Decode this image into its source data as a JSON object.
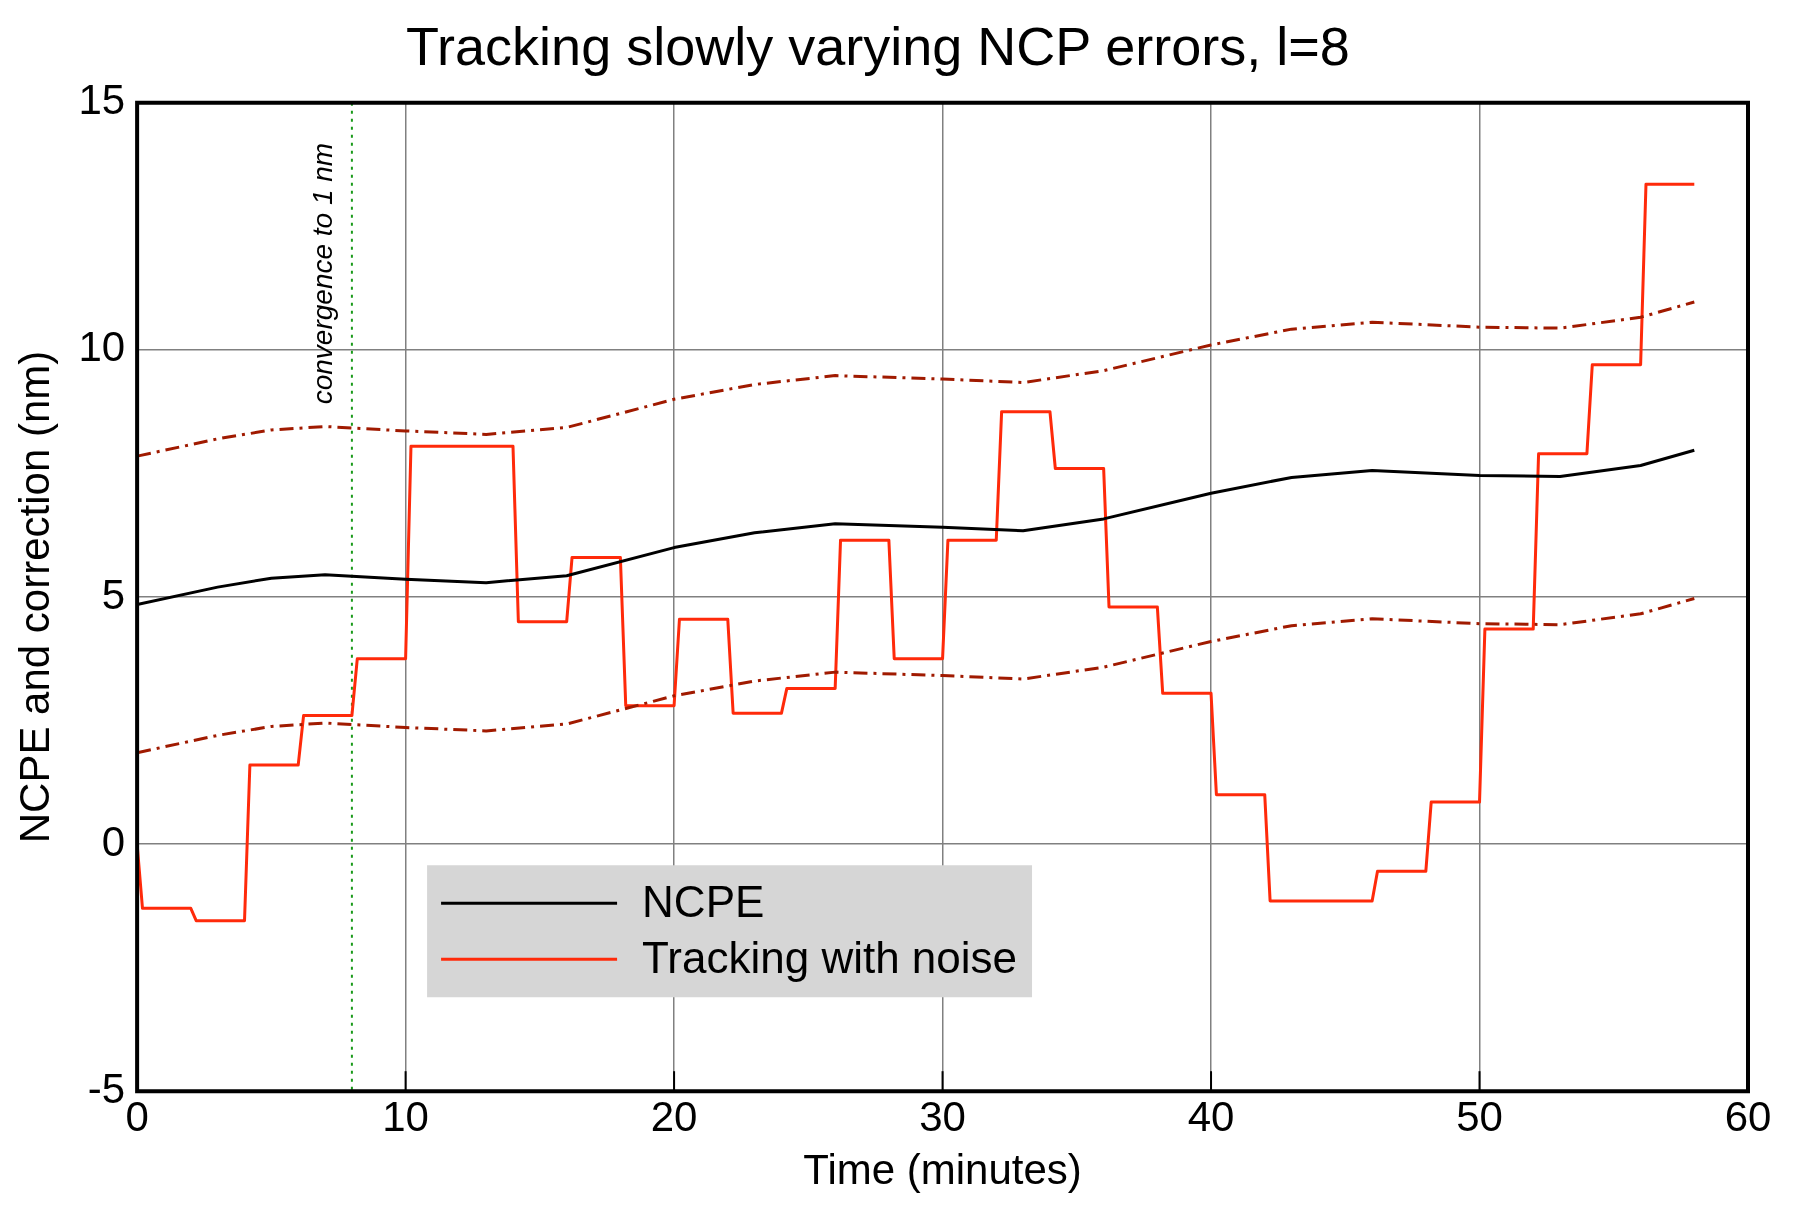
{
  "chart_data": {
    "type": "line",
    "title": "Tracking slowly varying NCP errors, l=8",
    "xlabel": "Time (minutes)",
    "ylabel": "NCPE and correction (nm)",
    "xlim": [
      0,
      60
    ],
    "xticks": [
      0,
      10,
      20,
      30,
      40,
      50,
      60
    ],
    "ylim": [
      -5,
      15
    ],
    "yticks": [
      -5,
      0,
      5,
      10,
      15
    ],
    "grid": true,
    "legend": "bottom left",
    "ref_lines": [
      {
        "axis": "x",
        "value": 8,
        "label": "convergence to 1 nm",
        "color": "#1a9a1a",
        "line_style": "dotted"
      }
    ],
    "series": [
      {
        "name": "NCPE",
        "color": "#000000",
        "x": [
          0,
          3,
          5,
          7,
          10,
          13,
          16,
          20,
          23,
          26,
          30,
          33,
          36,
          40,
          43,
          46,
          50,
          53,
          56,
          58
        ],
        "values": [
          4.85,
          5.2,
          5.38,
          5.45,
          5.36,
          5.29,
          5.43,
          6.0,
          6.3,
          6.48,
          6.41,
          6.34,
          6.58,
          7.1,
          7.42,
          7.56,
          7.46,
          7.44,
          7.66,
          7.97
        ]
      },
      {
        "color": "#a01a00",
        "line_style": "dashed",
        "x": [
          0,
          3,
          5,
          7,
          10,
          13,
          16,
          20,
          23,
          26,
          30,
          33,
          36,
          40,
          43,
          46,
          50,
          53,
          56,
          58
        ],
        "values": [
          7.85,
          8.2,
          8.38,
          8.45,
          8.36,
          8.29,
          8.43,
          9.0,
          9.3,
          9.48,
          9.41,
          9.34,
          9.58,
          10.1,
          10.42,
          10.56,
          10.46,
          10.44,
          10.66,
          10.97
        ]
      },
      {
        "color": "#a01a00",
        "line_style": "dashed",
        "x": [
          0,
          3,
          5,
          7,
          10,
          13,
          16,
          20,
          23,
          26,
          30,
          33,
          36,
          40,
          43,
          46,
          50,
          53,
          56,
          58
        ],
        "values": [
          1.85,
          2.2,
          2.38,
          2.45,
          2.36,
          2.29,
          2.43,
          3.0,
          3.3,
          3.48,
          3.41,
          3.34,
          3.58,
          4.1,
          4.42,
          4.56,
          4.46,
          4.44,
          4.66,
          4.97
        ]
      },
      {
        "name": "Tracking with noise",
        "color": "#ff2a0a",
        "x": [
          0,
          0.2,
          2,
          2.2,
          4,
          4.2,
          6,
          6.2,
          8,
          8.2,
          10,
          10.2,
          14,
          14.2,
          16,
          16.2,
          18,
          18.2,
          20,
          20.2,
          22,
          22.2,
          24,
          24.2,
          26,
          26.2,
          28,
          28.2,
          30,
          30.2,
          32,
          32.2,
          34,
          34.2,
          36,
          36.2,
          38,
          38.2,
          40,
          40.2,
          42,
          42.2,
          46,
          46.2,
          48,
          48.2,
          50,
          50.2,
          52,
          52.2,
          54,
          54.2,
          56,
          56.2,
          58
        ],
        "values": [
          0,
          -1.3,
          -1.3,
          -1.55,
          -1.55,
          1.6,
          1.6,
          2.6,
          2.6,
          3.75,
          3.75,
          8.05,
          8.05,
          4.5,
          4.5,
          5.8,
          5.8,
          2.8,
          2.8,
          4.55,
          4.55,
          2.65,
          2.65,
          3.15,
          3.15,
          6.15,
          6.15,
          3.75,
          3.75,
          6.15,
          6.15,
          8.75,
          8.75,
          7.6,
          7.6,
          4.8,
          4.8,
          3.05,
          3.05,
          1.0,
          1.0,
          -1.15,
          -1.15,
          -0.55,
          -0.55,
          0.85,
          0.85,
          4.35,
          4.35,
          7.9,
          7.9,
          9.7,
          9.7,
          13.35,
          13.35
        ]
      }
    ]
  }
}
